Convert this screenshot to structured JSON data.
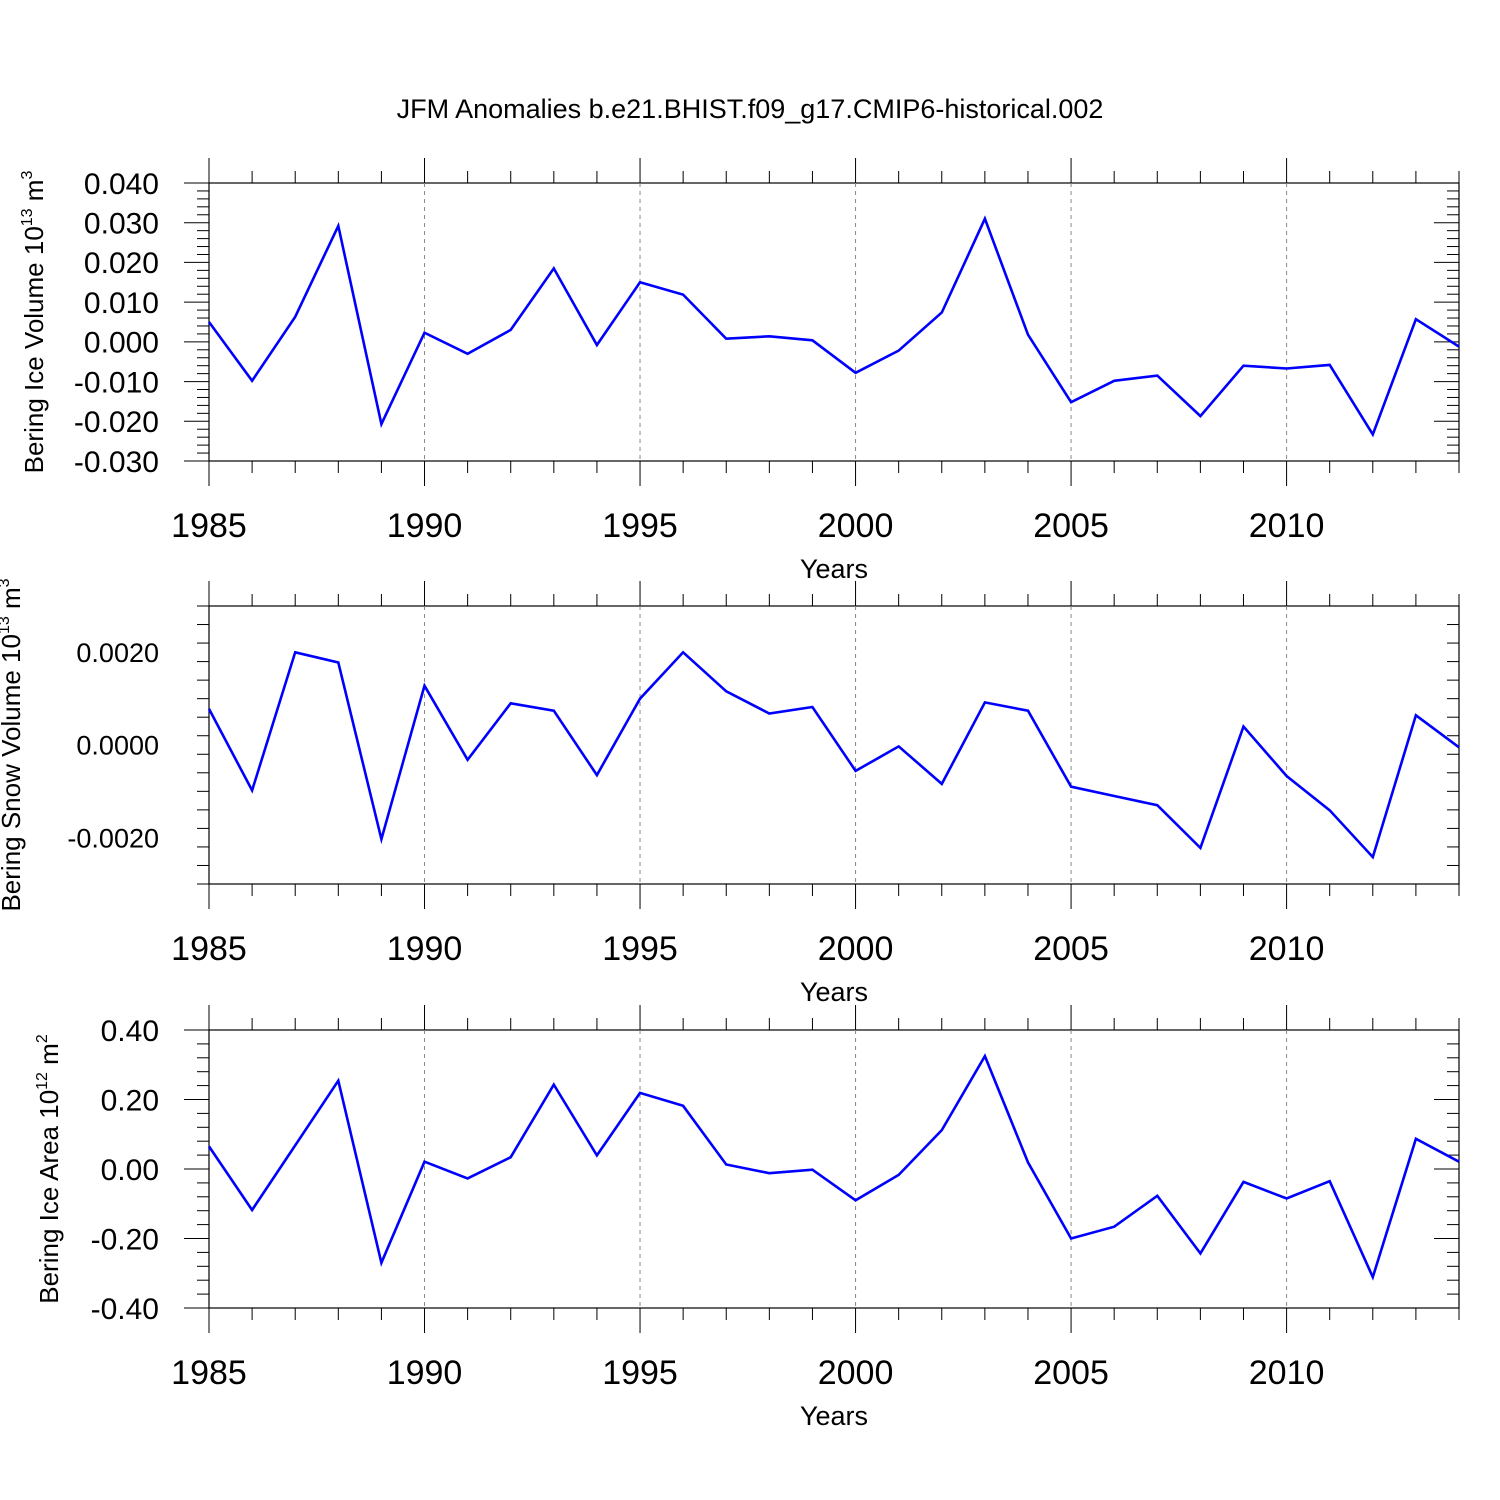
{
  "title": "JFM Anomalies b.e21.BHIST.f09_g17.CMIP6-historical.002",
  "colors": {
    "line": "#0000ff",
    "axis": "#000000",
    "grid": "#888888",
    "background": "#ffffff"
  },
  "chart_data": [
    {
      "type": "line",
      "xlabel": "Years",
      "ylabel": {
        "text": "Bering Ice Volume 10",
        "sup1": "13",
        "mid": " m",
        "sup2": "3"
      },
      "xlim": [
        1985,
        2014
      ],
      "ylim": [
        -0.03,
        0.04
      ],
      "xticks": [
        1985,
        1990,
        1995,
        2000,
        2005,
        2010
      ],
      "xtick_labels": [
        "1985",
        "1990",
        "1995",
        "2000",
        "2005",
        "2010"
      ],
      "yticks": [
        -0.03,
        -0.02,
        -0.01,
        0.0,
        0.01,
        0.02,
        0.03,
        0.04
      ],
      "ytick_labels": [
        "-0.030",
        "-0.020",
        "-0.010",
        "0.000",
        "0.010",
        "0.020",
        "0.030",
        "0.040"
      ],
      "grid": "vertical-dashed-at-major-x",
      "x": [
        1985,
        1986,
        1987,
        1988,
        1989,
        1990,
        1991,
        1992,
        1993,
        1994,
        1995,
        1996,
        1997,
        1998,
        1999,
        2000,
        2001,
        2002,
        2003,
        2004,
        2005,
        2006,
        2007,
        2008,
        2009,
        2010,
        2011,
        2012,
        2013,
        2014
      ],
      "y": [
        0.005,
        -0.0098,
        0.0063,
        0.0292,
        -0.0207,
        0.0023,
        -0.003,
        0.003,
        0.0185,
        -0.0008,
        0.015,
        0.0119,
        0.0008,
        0.0014,
        0.0004,
        -0.0078,
        -0.0022,
        0.0074,
        0.031,
        0.0018,
        -0.0152,
        -0.0098,
        -0.0085,
        -0.0187,
        -0.006,
        -0.0067,
        -0.0058,
        -0.0233,
        0.0057,
        -0.0012
      ]
    },
    {
      "type": "line",
      "xlabel": "Years",
      "ylabel": {
        "text": "Bering Snow Volume 10",
        "sup1": "13",
        "mid": " m",
        "sup2": "3"
      },
      "xlim": [
        1985,
        2014
      ],
      "ylim": [
        -0.003,
        0.003
      ],
      "xticks": [
        1985,
        1990,
        1995,
        2000,
        2005,
        2010
      ],
      "xtick_labels": [
        "1985",
        "1990",
        "1995",
        "2000",
        "2005",
        "2010"
      ],
      "yticks": [
        -0.002,
        0.0,
        0.002
      ],
      "ytick_labels": [
        "-0.0020",
        "0.0000",
        "0.0020"
      ],
      "grid": "vertical-dashed-at-major-x",
      "x": [
        1985,
        1986,
        1987,
        1988,
        1989,
        1990,
        1991,
        1992,
        1993,
        1994,
        1995,
        1996,
        1997,
        1998,
        1999,
        2000,
        2001,
        2002,
        2003,
        2004,
        2005,
        2006,
        2007,
        2008,
        2009,
        2010,
        2011,
        2012,
        2013,
        2014
      ],
      "y": [
        0.00078,
        -0.00098,
        0.002,
        0.00178,
        -0.00203,
        0.00128,
        -0.00032,
        0.0009,
        0.00074,
        -0.00065,
        0.001,
        0.002,
        0.00116,
        0.00068,
        0.00082,
        -0.00056,
        -3e-05,
        -0.00084,
        0.00092,
        0.00074,
        -0.0009,
        -0.0011,
        -0.0013,
        -0.00222,
        0.0004,
        -0.00067,
        -0.00141,
        -0.00242,
        0.00064,
        -5e-05
      ]
    },
    {
      "type": "line",
      "xlabel": "Years",
      "ylabel": {
        "text": "Bering Ice Area 10",
        "sup1": "12",
        "mid": " m",
        "sup2": "2"
      },
      "xlim": [
        1985,
        2014
      ],
      "ylim": [
        -0.4,
        0.4
      ],
      "xticks": [
        1985,
        1990,
        1995,
        2000,
        2005,
        2010
      ],
      "xtick_labels": [
        "1985",
        "1990",
        "1995",
        "2000",
        "2005",
        "2010"
      ],
      "yticks": [
        -0.4,
        -0.2,
        0.0,
        0.2,
        0.4
      ],
      "ytick_labels": [
        "-0.40",
        "-0.20",
        "0.00",
        "0.20",
        "0.40"
      ],
      "grid": "vertical-dashed-at-major-x",
      "x": [
        1985,
        1986,
        1987,
        1988,
        1989,
        1990,
        1991,
        1992,
        1993,
        1994,
        1995,
        1996,
        1997,
        1998,
        1999,
        2000,
        2001,
        2002,
        2003,
        2004,
        2005,
        2006,
        2007,
        2008,
        2009,
        2010,
        2011,
        2012,
        2013,
        2014
      ],
      "y": [
        0.065,
        -0.118,
        0.068,
        0.254,
        -0.27,
        0.021,
        -0.027,
        0.034,
        0.243,
        0.039,
        0.219,
        0.182,
        0.013,
        -0.012,
        -0.002,
        -0.09,
        -0.017,
        0.112,
        0.325,
        0.019,
        -0.2,
        -0.166,
        -0.077,
        -0.243,
        -0.037,
        -0.085,
        -0.035,
        -0.311,
        0.087,
        0.021
      ]
    }
  ]
}
